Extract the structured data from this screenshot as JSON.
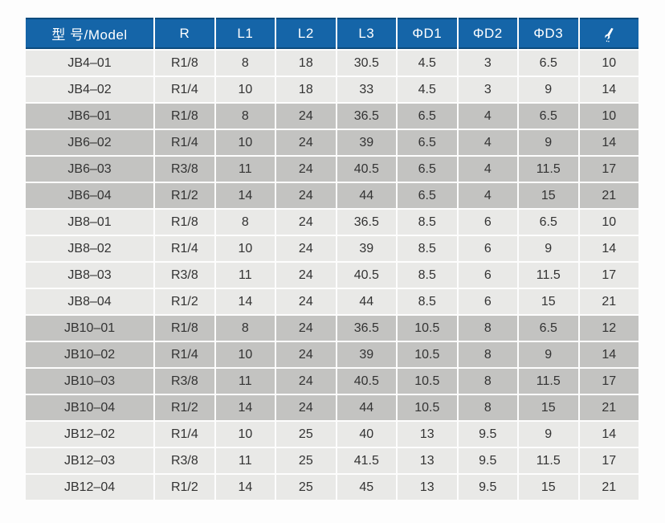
{
  "colors": {
    "header_bg": "#1565a8",
    "header_edge": "#0d4c7e",
    "header_text": "#ffffff",
    "row_light": "#e9e9e7",
    "row_dark": "#c3c3c1",
    "separator": "#ffffff",
    "text": "#333333"
  },
  "table": {
    "columns": [
      "型 号/Model",
      "R",
      "L1",
      "L2",
      "L3",
      "ΦD1",
      "ΦD2",
      "ΦD3"
    ],
    "icon_column": {
      "icon": "wrench-icon",
      "meaning": "wrench size"
    },
    "rows": [
      {
        "shade": "light",
        "cells": [
          "JB4–01",
          "R1/8",
          "8",
          "18",
          "30.5",
          "4.5",
          "3",
          "6.5",
          "10"
        ]
      },
      {
        "shade": "light",
        "cells": [
          "JB4–02",
          "R1/4",
          "10",
          "18",
          "33",
          "4.5",
          "3",
          "9",
          "14"
        ]
      },
      {
        "shade": "dark",
        "cells": [
          "JB6–01",
          "R1/8",
          "8",
          "24",
          "36.5",
          "6.5",
          "4",
          "6.5",
          "10"
        ]
      },
      {
        "shade": "dark",
        "cells": [
          "JB6–02",
          "R1/4",
          "10",
          "24",
          "39",
          "6.5",
          "4",
          "9",
          "14"
        ]
      },
      {
        "shade": "dark",
        "cells": [
          "JB6–03",
          "R3/8",
          "11",
          "24",
          "40.5",
          "6.5",
          "4",
          "11.5",
          "17"
        ]
      },
      {
        "shade": "dark",
        "cells": [
          "JB6–04",
          "R1/2",
          "14",
          "24",
          "44",
          "6.5",
          "4",
          "15",
          "21"
        ]
      },
      {
        "shade": "light",
        "cells": [
          "JB8–01",
          "R1/8",
          "8",
          "24",
          "36.5",
          "8.5",
          "6",
          "6.5",
          "10"
        ]
      },
      {
        "shade": "light",
        "cells": [
          "JB8–02",
          "R1/4",
          "10",
          "24",
          "39",
          "8.5",
          "6",
          "9",
          "14"
        ]
      },
      {
        "shade": "light",
        "cells": [
          "JB8–03",
          "R3/8",
          "11",
          "24",
          "40.5",
          "8.5",
          "6",
          "11.5",
          "17"
        ]
      },
      {
        "shade": "light",
        "cells": [
          "JB8–04",
          "R1/2",
          "14",
          "24",
          "44",
          "8.5",
          "6",
          "15",
          "21"
        ]
      },
      {
        "shade": "dark",
        "cells": [
          "JB10–01",
          "R1/8",
          "8",
          "24",
          "36.5",
          "10.5",
          "8",
          "6.5",
          "12"
        ]
      },
      {
        "shade": "dark",
        "cells": [
          "JB10–02",
          "R1/4",
          "10",
          "24",
          "39",
          "10.5",
          "8",
          "9",
          "14"
        ]
      },
      {
        "shade": "dark",
        "cells": [
          "JB10–03",
          "R3/8",
          "11",
          "24",
          "40.5",
          "10.5",
          "8",
          "11.5",
          "17"
        ]
      },
      {
        "shade": "dark",
        "cells": [
          "JB10–04",
          "R1/2",
          "14",
          "24",
          "44",
          "10.5",
          "8",
          "15",
          "21"
        ]
      },
      {
        "shade": "light",
        "cells": [
          "JB12–02",
          "R1/4",
          "10",
          "25",
          "40",
          "13",
          "9.5",
          "9",
          "14"
        ]
      },
      {
        "shade": "light",
        "cells": [
          "JB12–03",
          "R3/8",
          "11",
          "25",
          "41.5",
          "13",
          "9.5",
          "11.5",
          "17"
        ]
      },
      {
        "shade": "light",
        "cells": [
          "JB12–04",
          "R1/2",
          "14",
          "25",
          "45",
          "13",
          "9.5",
          "15",
          "21"
        ]
      }
    ]
  }
}
